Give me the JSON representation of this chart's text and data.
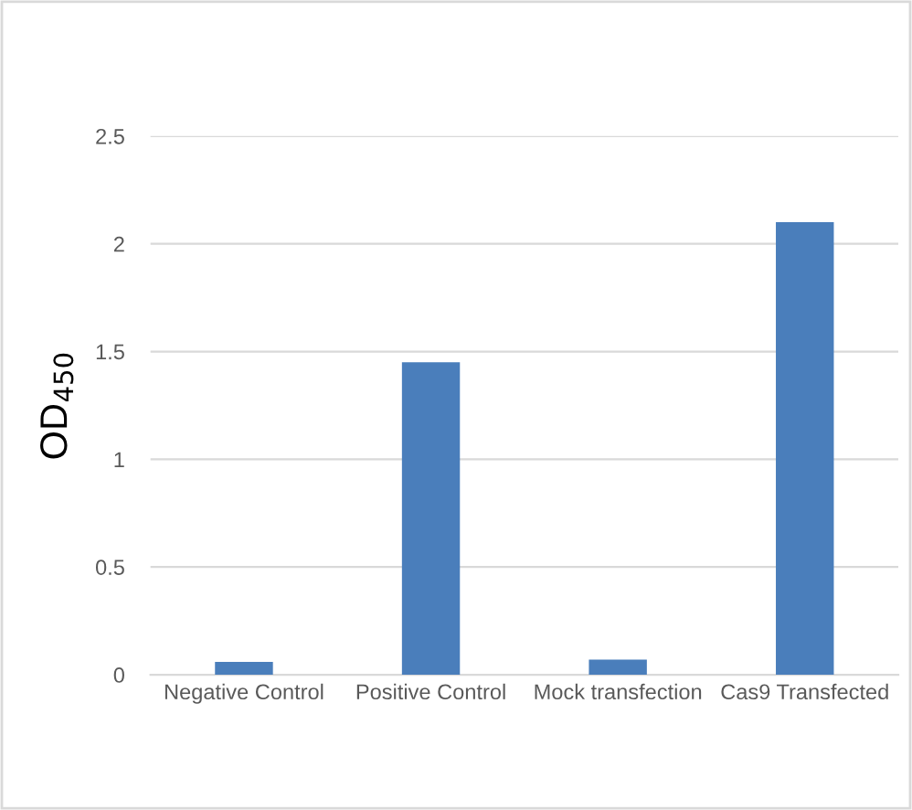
{
  "chart_data": {
    "type": "bar",
    "ylabel": "OD$_{450}$",
    "categories": [
      "Negative Control",
      "Positive Control",
      "Mock transfection",
      "Cas9 Transfected"
    ],
    "values": [
      0.06,
      1.45,
      0.07,
      2.1
    ],
    "color": "#4a7ebb",
    "ylim": [
      0,
      2.5
    ],
    "yticks": [
      0,
      0.5,
      1,
      1.5,
      2,
      2.5
    ],
    "grid": "y",
    "legend": false
  }
}
